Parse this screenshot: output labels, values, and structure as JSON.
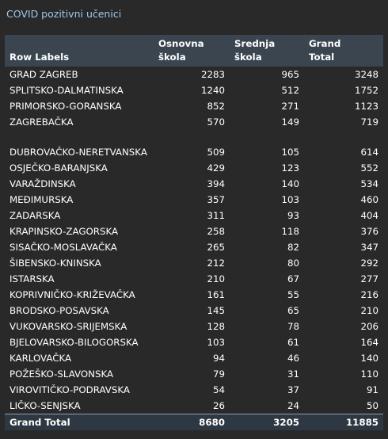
{
  "title": "COVID pozitivni učenici",
  "table": {
    "headers": {
      "row_labels": "Row Labels",
      "col1": "Osnovna škola",
      "col2_line1": "Srednja",
      "col2_line2": "škola",
      "col3_line1": "Grand",
      "col3_line2": "Total"
    },
    "rows": [
      {
        "label": "GRAD ZAGREB",
        "osnovna": "2283",
        "srednja": "965",
        "total": "3248"
      },
      {
        "label": "SPLITSKO-DALMATINSKA",
        "osnovna": "1240",
        "srednja": "512",
        "total": "1752"
      },
      {
        "label": "PRIMORSKO-GORANSKA",
        "osnovna": "852",
        "srednja": "271",
        "total": "1123"
      },
      {
        "label": "ZAGREBAČKA",
        "osnovna": "570",
        "srednja": "149",
        "total": "719"
      },
      {
        "label": "DUBROVAČKO-NERETVANSKA",
        "osnovna": "509",
        "srednja": "105",
        "total": "614"
      },
      {
        "label": "OSJEČKO-BARANJSKA",
        "osnovna": "429",
        "srednja": "123",
        "total": "552"
      },
      {
        "label": "VARAŽDINSKA",
        "osnovna": "394",
        "srednja": "140",
        "total": "534"
      },
      {
        "label": "MEĐIMURSKA",
        "osnovna": "357",
        "srednja": "103",
        "total": "460"
      },
      {
        "label": "ZADARSKA",
        "osnovna": "311",
        "srednja": "93",
        "total": "404"
      },
      {
        "label": "KRAPINSKO-ZAGORSKA",
        "osnovna": "258",
        "srednja": "118",
        "total": "376"
      },
      {
        "label": "SISAČKO-MOSLAVAČKA",
        "osnovna": "265",
        "srednja": "82",
        "total": "347"
      },
      {
        "label": "ŠIBENSKO-KNINSKA",
        "osnovna": "212",
        "srednja": "80",
        "total": "292"
      },
      {
        "label": "ISTARSKA",
        "osnovna": "210",
        "srednja": "67",
        "total": "277"
      },
      {
        "label": "KOPRIVNIČKO-KRIŽEVAČKA",
        "osnovna": "161",
        "srednja": "55",
        "total": "216"
      },
      {
        "label": "BRODSKO-POSAVSKA",
        "osnovna": "145",
        "srednja": "65",
        "total": "210"
      },
      {
        "label": "VUKOVARSKO-SRIJEMSKA",
        "osnovna": "128",
        "srednja": "78",
        "total": "206"
      },
      {
        "label": "BJELOVARSKO-BILOGORSKA",
        "osnovna": "103",
        "srednja": "61",
        "total": "164"
      },
      {
        "label": "KARLOVAČKA",
        "osnovna": "94",
        "srednja": "46",
        "total": "140"
      },
      {
        "label": "POŽEŠKO-SLAVONSKA",
        "osnovna": "79",
        "srednja": "31",
        "total": "110"
      },
      {
        "label": "VIROVITIČKO-PODRAVSKA",
        "osnovna": "54",
        "srednja": "37",
        "total": "91"
      },
      {
        "label": "LIČKO-SENJSKA",
        "osnovna": "26",
        "srednja": "24",
        "total": "50"
      }
    ],
    "grand_total": {
      "label": "Grand Total",
      "osnovna": "8680",
      "srednja": "3205",
      "total": "11885"
    }
  }
}
